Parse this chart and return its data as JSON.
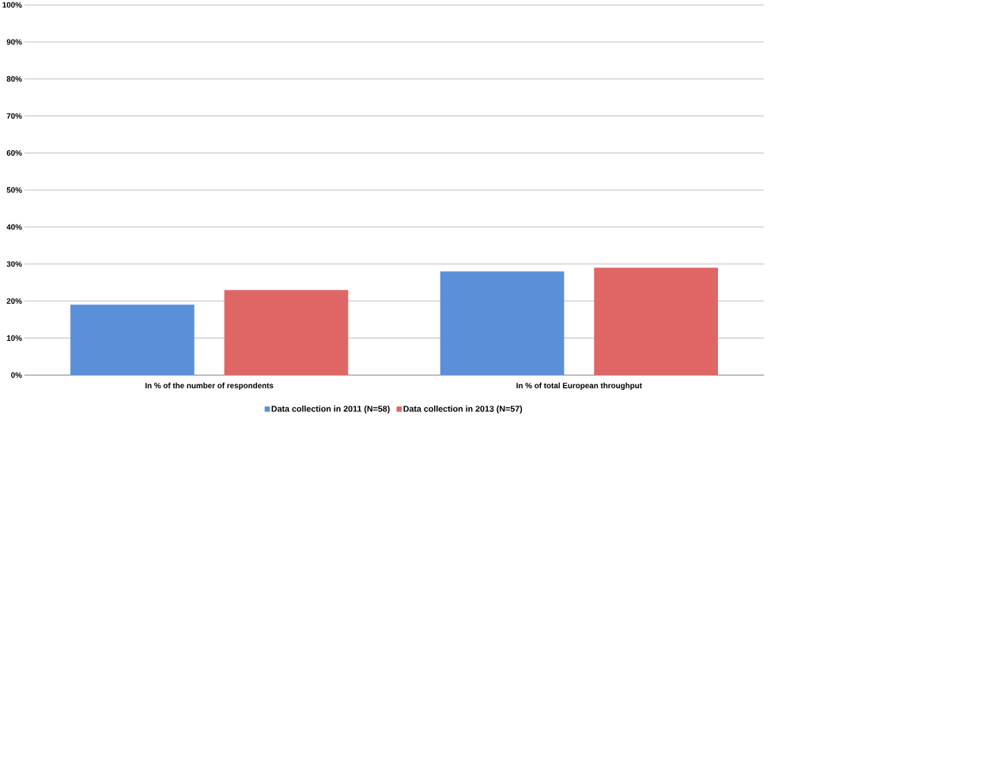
{
  "chart_data": {
    "type": "bar",
    "categories": [
      "In % of the number of respondents",
      "In % of total European throughput"
    ],
    "series": [
      {
        "name": "Data collection in 2011 (N=58)",
        "color": "#5b8fd9",
        "values": [
          19,
          28
        ]
      },
      {
        "name": "Data collection in 2013 (N=57)",
        "color": "#e06666",
        "values": [
          23,
          29
        ]
      }
    ],
    "ylim": [
      0,
      100
    ],
    "yticks": [
      {
        "value": 0,
        "label": "0%"
      },
      {
        "value": 10,
        "label": "10%"
      },
      {
        "value": 20,
        "label": "20%"
      },
      {
        "value": 30,
        "label": "30%"
      },
      {
        "value": 40,
        "label": "40%"
      },
      {
        "value": 50,
        "label": "50%"
      },
      {
        "value": 60,
        "label": "60%"
      },
      {
        "value": 70,
        "label": "70%"
      },
      {
        "value": 80,
        "label": "80%"
      },
      {
        "value": 90,
        "label": "90%"
      },
      {
        "value": 100,
        "label": "100%"
      }
    ],
    "grid": "y",
    "legend": "bottom"
  }
}
